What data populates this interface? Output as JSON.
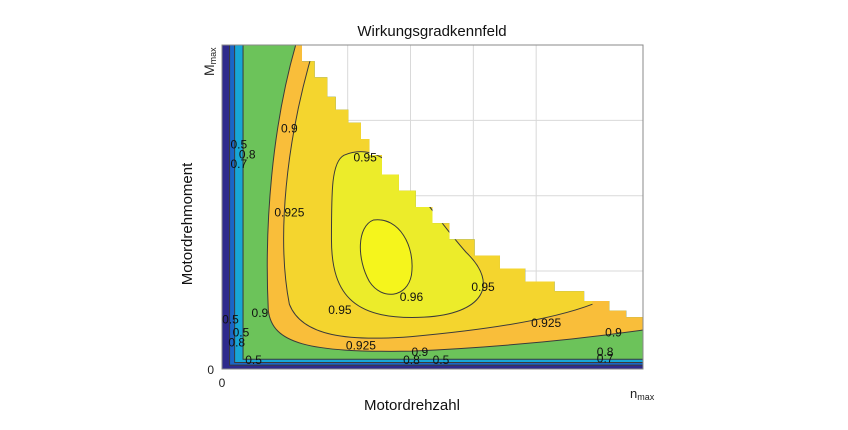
{
  "chart_data": {
    "type": "contour",
    "title": "Wirkungsgradkennfeld",
    "xlabel": "Motordrehzahl",
    "ylabel": "Motordrehmoment",
    "x_ticks": {
      "min": "0",
      "max_main": "n",
      "max_sub": "max"
    },
    "y_ticks": {
      "min": "0",
      "max_main": "M",
      "max_sub": "max"
    },
    "xlim": [
      0,
      1
    ],
    "ylim": [
      0,
      1
    ],
    "grid": true,
    "contour_levels": [
      0.5,
      0.7,
      0.8,
      0.9,
      0.925,
      0.95,
      0.96
    ],
    "level_colors": {
      "below_0.5": "#2e2a8c",
      "0.5_0.7": "#1a66c7",
      "0.7_0.8": "#17a6d6",
      "0.8_0.9": "#6cc35a",
      "0.9_0.925": "#f9be3a",
      "0.925_0.95": "#f4d52e",
      "0.95_0.96": "#ecec2a",
      "above_0.96": "#f5f51c"
    },
    "contour_labels": [
      {
        "text": "0.5",
        "x": 0.04,
        "y": 0.68
      },
      {
        "text": "0.7",
        "x": 0.04,
        "y": 0.62
      },
      {
        "text": "0.8",
        "x": 0.06,
        "y": 0.65
      },
      {
        "text": "0.9",
        "x": 0.16,
        "y": 0.73
      },
      {
        "text": "0.925",
        "x": 0.16,
        "y": 0.47
      },
      {
        "text": "0.95",
        "x": 0.34,
        "y": 0.64
      },
      {
        "text": "0.96",
        "x": 0.45,
        "y": 0.21
      },
      {
        "text": "0.95",
        "x": 0.28,
        "y": 0.17
      },
      {
        "text": "0.95",
        "x": 0.62,
        "y": 0.24
      },
      {
        "text": "0.9",
        "x": 0.09,
        "y": 0.16
      },
      {
        "text": "0.925",
        "x": 0.33,
        "y": 0.06
      },
      {
        "text": "0.925",
        "x": 0.77,
        "y": 0.13
      },
      {
        "text": "0.9",
        "x": 0.93,
        "y": 0.1
      },
      {
        "text": "0.9",
        "x": 0.47,
        "y": 0.04
      },
      {
        "text": "0.8",
        "x": 0.45,
        "y": 0.015
      },
      {
        "text": "0.5",
        "x": 0.52,
        "y": 0.015
      },
      {
        "text": "0.8",
        "x": 0.91,
        "y": 0.04
      },
      {
        "text": "0.7",
        "x": 0.91,
        "y": 0.02
      },
      {
        "text": "0.5",
        "x": 0.075,
        "y": 0.015
      },
      {
        "text": "0.5",
        "x": 0.02,
        "y": 0.14
      },
      {
        "text": "0.8",
        "x": 0.035,
        "y": 0.07
      },
      {
        "text": "0.5",
        "x": 0.045,
        "y": 0.1
      }
    ]
  },
  "colors": {
    "frame": "#8a8a8a",
    "grid": "#d9d9d9",
    "contour_line": "#3a3a3a"
  }
}
